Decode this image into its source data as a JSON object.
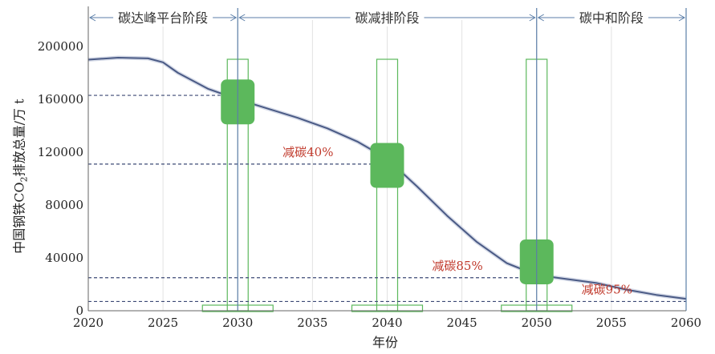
{
  "chart_data": {
    "type": "line",
    "xlabel": "年份",
    "ylabel_parts": {
      "pre": "中国钢铁CO",
      "sub": "2",
      "post": "排放总量/万 t"
    },
    "xlim": [
      2020,
      2060
    ],
    "ylim": [
      0,
      220000
    ],
    "xticks": [
      "2020",
      "2025",
      "2030",
      "2035",
      "2040",
      "2045",
      "2050",
      "2055",
      "2060"
    ],
    "yticks": [
      "0",
      "40000",
      "80000",
      "120000",
      "160000",
      "200000"
    ],
    "grid": "vertical",
    "series": [
      {
        "color": "#4a5a85",
        "x": [
          2020,
          2022,
          2024,
          2025,
          2026,
          2028,
          2030,
          2032,
          2034,
          2036,
          2038,
          2040,
          2042,
          2044,
          2046,
          2048,
          2050,
          2052,
          2054,
          2056,
          2058,
          2060
        ],
        "y": [
          190000,
          191500,
          191000,
          188000,
          180000,
          168000,
          160000,
          153000,
          146000,
          138000,
          128000,
          115000,
          94000,
          72000,
          52000,
          36000,
          27000,
          24000,
          21000,
          16000,
          12000,
          9000
        ]
      }
    ],
    "phases": [
      {
        "label": "碳达峰平台阶段",
        "from": 2020,
        "to": 2030
      },
      {
        "label": "碳减排阶段",
        "from": 2030,
        "to": 2050
      },
      {
        "label": "碳中和阶段",
        "from": 2050,
        "to": 2060
      }
    ],
    "markers": [
      {
        "x": 2030,
        "y": 158000
      },
      {
        "x": 2040,
        "y": 110000
      },
      {
        "x": 2050,
        "y": 37000
      }
    ],
    "reference_lines": [
      {
        "y": 163000,
        "x_end": 2030,
        "label": ""
      },
      {
        "y": 111000,
        "x_end": 2040,
        "label": "减碳40%"
      },
      {
        "y": 25000,
        "x_end": 2050,
        "label": "减碳85%"
      },
      {
        "y": 7000,
        "x_end": 2060,
        "label": "减碳95%"
      }
    ],
    "colors": {
      "line": "#4a5a85",
      "marker": "#5cb85c",
      "box_outline": "#5cb85c",
      "annotation": "#c0392b",
      "dashed": "#3c4a75",
      "phase": "#5b7ea8"
    }
  }
}
